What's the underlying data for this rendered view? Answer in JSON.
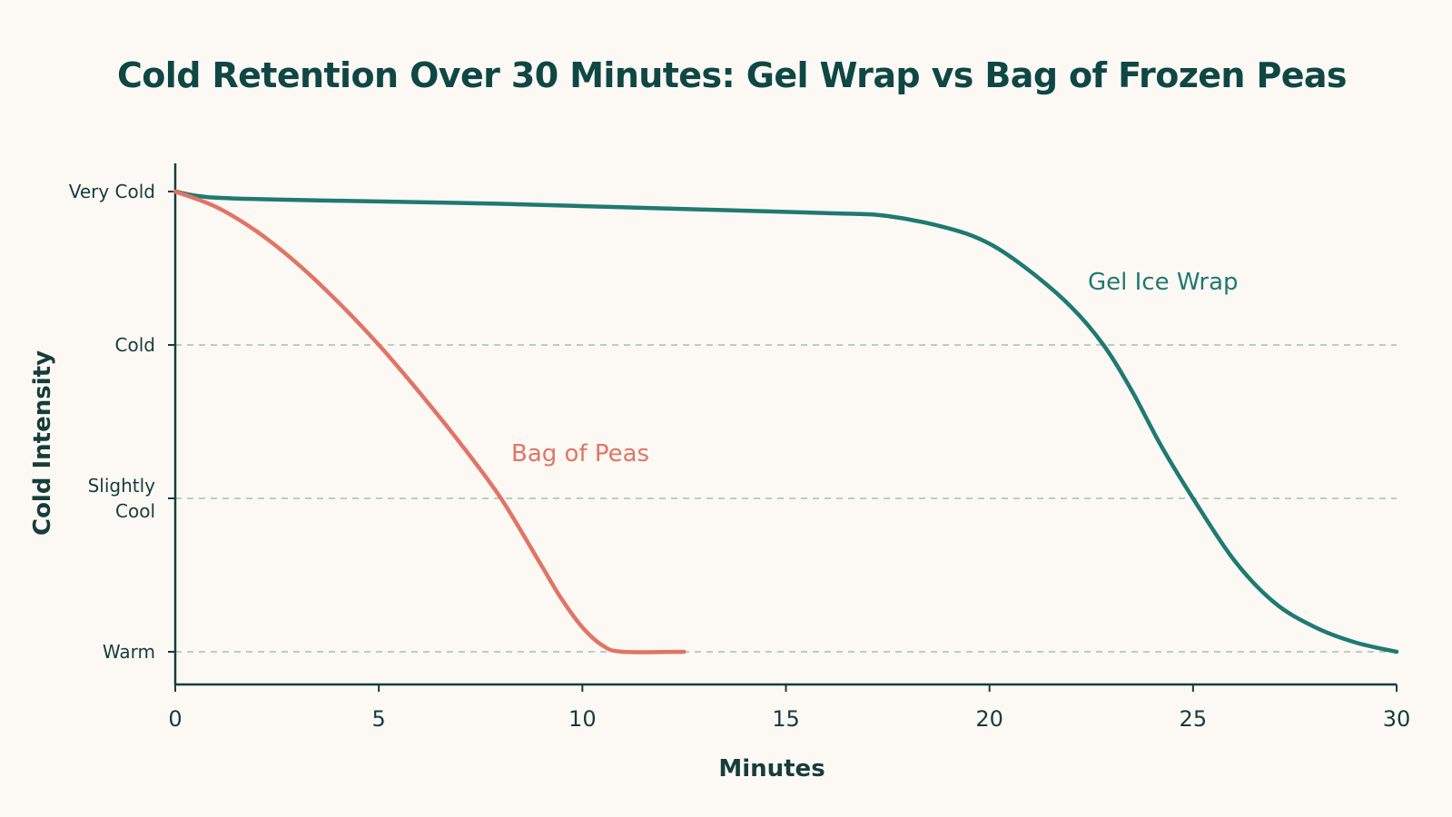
{
  "chart_data": {
    "type": "line",
    "title": "Cold Retention Over 30 Minutes: Gel Wrap vs Bag of Frozen Peas",
    "xlabel": "Minutes",
    "ylabel": "Cold Intensity",
    "xlim": [
      0,
      30
    ],
    "x_ticks": [
      "0",
      "5",
      "10",
      "15",
      "20",
      "25",
      "30"
    ],
    "x_tick_values": [
      0,
      5,
      10,
      15,
      20,
      25,
      30
    ],
    "ylim": [
      0,
      3
    ],
    "y_ticks": [
      {
        "value": 3,
        "lines": [
          "Very Cold"
        ]
      },
      {
        "value": 2,
        "lines": [
          "Cold"
        ]
      },
      {
        "value": 1,
        "lines": [
          "Slightly",
          "Cool"
        ]
      },
      {
        "value": 0,
        "lines": [
          "Warm"
        ]
      }
    ],
    "gridlines_y": [
      2,
      1,
      0
    ],
    "grid": "dashed horizontal",
    "series": [
      {
        "name": "Gel Ice Wrap",
        "color": "#1f7a70",
        "x": [
          0,
          1,
          4,
          8,
          12,
          16,
          17.5,
          19,
          20,
          21,
          22,
          22.8,
          23.5,
          24.2,
          25,
          26,
          27,
          28,
          29,
          30
        ],
        "y": [
          3.0,
          2.96,
          2.94,
          2.92,
          2.89,
          2.86,
          2.84,
          2.76,
          2.66,
          2.48,
          2.25,
          2.0,
          1.7,
          1.35,
          1.0,
          0.6,
          0.32,
          0.16,
          0.06,
          0.0
        ]
      },
      {
        "name": "Bag of Peas",
        "color": "#e27465",
        "x": [
          0,
          1,
          2,
          3,
          4,
          5,
          6,
          7,
          8,
          9,
          9.5,
          10,
          10.5,
          11,
          12.5
        ],
        "y": [
          3.0,
          2.9,
          2.74,
          2.53,
          2.28,
          2.0,
          1.69,
          1.36,
          1.0,
          0.56,
          0.34,
          0.16,
          0.04,
          0.0,
          0.0
        ]
      }
    ],
    "colors": {
      "background": "#fcf9f4",
      "title": "#0f4744",
      "axis": "#123e3a",
      "text": "#163d3a",
      "grid": "#9cb0a8",
      "gel": "#1f7a70",
      "peas": "#e27465"
    }
  }
}
